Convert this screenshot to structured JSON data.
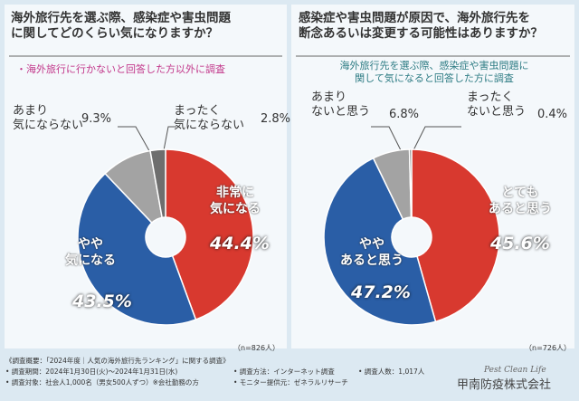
{
  "chart_data": [
    {
      "type": "pie",
      "title": "海外旅行先を選ぶ際、感染症や害虫問題\nに関してどのくらい気になりますか？",
      "subtitle": "・海外旅行に行かないと回答した方以外に調査",
      "note": "（n=826人）",
      "categories": [
        "非常に\n気になる",
        "やや\n気になる",
        "あまり\n気にならない",
        "まったく\n気にならない"
      ],
      "values": [
        44.4,
        43.5,
        9.3,
        2.8
      ],
      "value_labels": [
        "44.4%",
        "43.5%",
        "9.3%",
        "2.8%"
      ],
      "colors": [
        "#d8392f",
        "#2a5ea6",
        "#a3a3a3",
        "#6e6e6e"
      ]
    },
    {
      "type": "pie",
      "title": "感染症や害虫問題が原因で、海外旅行先を\n断念あるいは変更する可能性はありますか？",
      "subtitle": "海外旅行先を選ぶ際、感染症や害虫問題に\n関して気になると回答した方に調査",
      "note": "（n=726人）",
      "categories": [
        "とても\nあると思う",
        "やや\nあると思う",
        "あまり\nないと思う",
        "まったく\nないと思う"
      ],
      "values": [
        45.6,
        47.2,
        6.8,
        0.4
      ],
      "value_labels": [
        "45.6%",
        "47.2%",
        "6.8%",
        "0.4%"
      ],
      "colors": [
        "#d8392f",
        "#2a5ea6",
        "#a3a3a3",
        "#6e6e6e"
      ]
    }
  ],
  "footer": {
    "heading": "《調査概要：「2024年度｜人気の海外旅行先ランキング」に関する調査》",
    "items": [
      "• 調査期間：2024年1月30日(火)〜2024年1月31日(水)",
      "• 調査方法：インターネット調査",
      "• 調査人数：1,017人",
      "• 調査対象：社会人1,000名（男女500人ずつ）※会社勤務の方",
      "• モニター提供元：ゼネラルリサーチ"
    ]
  },
  "logo": {
    "tagline": "Pest Clean Life",
    "company": "甲南防疫株式会社"
  }
}
